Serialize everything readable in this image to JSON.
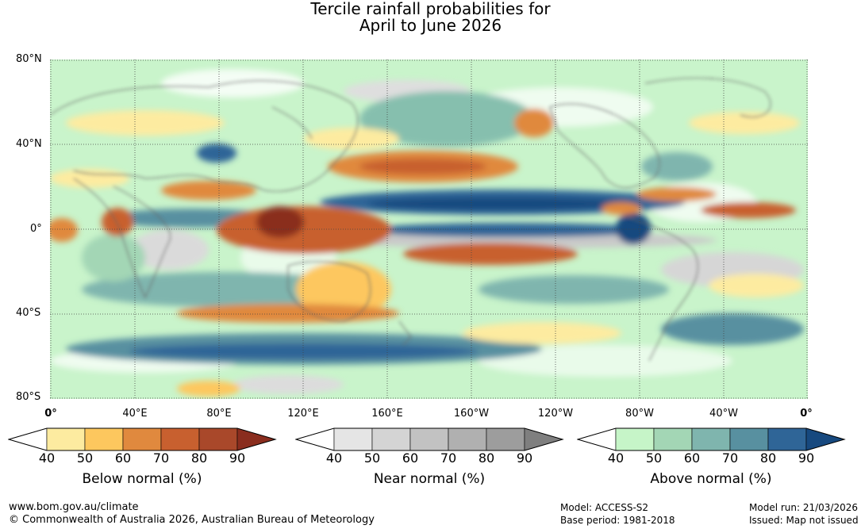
{
  "title": {
    "line1": "Tercile rainfall probabilities for",
    "line2": "April to June 2026"
  },
  "lat_labels": [
    "80°N",
    "40°N",
    "0°",
    "40°S",
    "80°S"
  ],
  "lon_labels": [
    "0°",
    "40°E",
    "80°E",
    "120°E",
    "160°E",
    "160°W",
    "120°W",
    "80°W",
    "40°W",
    "0°"
  ],
  "legends": {
    "below": {
      "label": "Below normal (%)",
      "ticks": [
        "40",
        "50",
        "60",
        "70",
        "80",
        "90"
      ],
      "colors": [
        "#ffffff",
        "#fdeba0",
        "#fdc75e",
        "#e0893e",
        "#c8602f",
        "#a9482a",
        "#8a2d1e"
      ]
    },
    "near": {
      "label": "Near normal (%)",
      "ticks": [
        "40",
        "50",
        "60",
        "70",
        "80",
        "90"
      ],
      "colors": [
        "#ffffff",
        "#e5e5e5",
        "#d4d4d4",
        "#c2c2c2",
        "#b0b0b0",
        "#9d9d9d",
        "#7f7f7f"
      ]
    },
    "above": {
      "label": "Above normal (%)",
      "ticks": [
        "40",
        "50",
        "60",
        "70",
        "80",
        "90"
      ],
      "colors": [
        "#ffffff",
        "#c6f5c8",
        "#a3d6b5",
        "#7fb5ae",
        "#5890a0",
        "#2f6597",
        "#17497f"
      ]
    }
  },
  "footer": {
    "url": "www.bom.gov.au/climate",
    "copyright": "© Commonwealth of Australia 2026, Australian Bureau of Meteorology",
    "model": "Model: ACCESS-S2",
    "base_period": "Base period: 1981-2018",
    "model_run": "Model run: 21/03/2026",
    "issued": "Issued: Map not issued"
  }
}
